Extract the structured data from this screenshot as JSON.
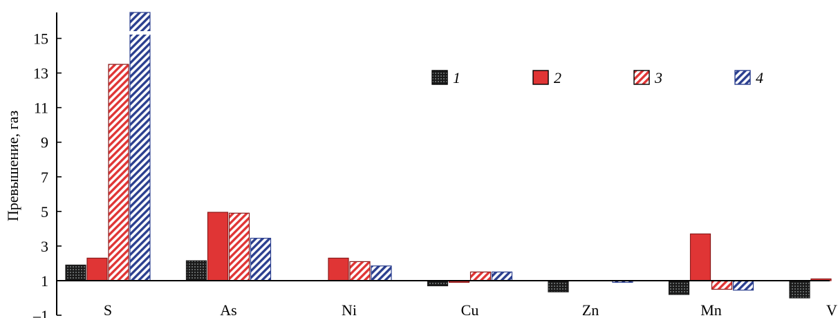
{
  "chart_data": {
    "type": "bar",
    "ylabel": "Превышение, газ",
    "xlabel": "",
    "ylim": [
      -1,
      16.5
    ],
    "baseline": 1,
    "yticks": [
      -1,
      1,
      3,
      5,
      7,
      9,
      11,
      13,
      15
    ],
    "ytick_labels": [
      "–1",
      "1",
      "3",
      "5",
      "7",
      "9",
      "11",
      "13",
      "15"
    ],
    "categories": [
      "S",
      "As",
      "Ni",
      "Cu",
      "Zn",
      "Mn",
      "V"
    ],
    "legend_position": "top-right",
    "series": [
      {
        "name": "1",
        "pattern": "dots",
        "color": "#1a1a1a",
        "values": [
          1.9,
          2.15,
          null,
          0.7,
          0.35,
          0.2,
          0.0
        ]
      },
      {
        "name": "2",
        "pattern": "solid",
        "color": "#e03535",
        "values": [
          2.3,
          4.95,
          2.3,
          0.9,
          null,
          3.7,
          1.1
        ]
      },
      {
        "name": "3",
        "pattern": "red-hatch",
        "color": "#e03535",
        "values": [
          13.5,
          4.9,
          2.1,
          1.5,
          null,
          0.5,
          null
        ]
      },
      {
        "name": "4",
        "pattern": "blue-hatch",
        "color": "#2b3f8f",
        "values": [
          16.5,
          3.45,
          1.85,
          1.5,
          0.9,
          0.45,
          0.9
        ]
      }
    ],
    "axis_break": "S bar of series 4 exceeds the axis maximum"
  }
}
